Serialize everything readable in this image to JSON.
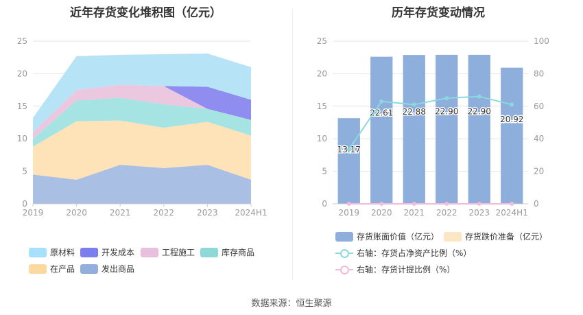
{
  "source_text": "数据来源：恒生聚源",
  "chart_data": [
    {
      "type": "area",
      "title": "近年存货变化堆积图（亿元）",
      "categories": [
        "2019",
        "2020",
        "2021",
        "2022",
        "2023",
        "2024H1"
      ],
      "ylim": [
        0,
        25
      ],
      "yticks": [
        0,
        5,
        10,
        15,
        20,
        25
      ],
      "grid": true,
      "legend_position": "bottom",
      "stack_order": [
        "发出商品",
        "在产品",
        "库存商品",
        "工程施工",
        "开发成本",
        "原材料"
      ],
      "series": [
        {
          "name": "原材料",
          "color": "#b7e3f7",
          "values": [
            2.2,
            5.2,
            4.6,
            4.9,
            5.1,
            5.0
          ]
        },
        {
          "name": "开发成本",
          "color": "#8f8df0",
          "values": [
            0,
            0,
            0,
            0,
            3.4,
            3.1
          ]
        },
        {
          "name": "工程施工",
          "color": "#ecc7e0",
          "values": [
            1.0,
            1.6,
            2.0,
            2.8,
            0,
            0
          ]
        },
        {
          "name": "库存商品",
          "color": "#a6e3e3",
          "values": [
            1.2,
            3.2,
            3.5,
            3.6,
            2.0,
            2.4
          ]
        },
        {
          "name": "在产品",
          "color": "#fde3b7",
          "values": [
            4.3,
            9.0,
            6.8,
            6.2,
            6.6,
            6.8
          ]
        },
        {
          "name": "发出商品",
          "color": "#a9bfe3",
          "values": [
            4.5,
            3.7,
            6.0,
            5.5,
            6.0,
            3.7
          ]
        }
      ],
      "legend": [
        {
          "name": "原材料",
          "color": "#a6e1fb"
        },
        {
          "name": "开发成本",
          "color": "#7b7ff0"
        },
        {
          "name": "工程施工",
          "color": "#e8bfdc"
        },
        {
          "name": "库存商品",
          "color": "#8ed8d8"
        },
        {
          "name": "在产品",
          "color": "#fcd9a1"
        },
        {
          "name": "发出商品",
          "color": "#92aedd"
        }
      ]
    },
    {
      "type": "bar",
      "title": "历年存货变动情况",
      "categories": [
        "2019",
        "2020",
        "2021",
        "2022",
        "2023",
        "2024H1"
      ],
      "ylim": [
        0,
        25
      ],
      "yticks": [
        0,
        5,
        10,
        15,
        20,
        25
      ],
      "y2lim": [
        0,
        100
      ],
      "y2ticks": [
        0,
        20,
        40,
        60,
        80,
        100
      ],
      "grid": true,
      "legend_position": "bottom",
      "bar_series": {
        "name": "存货账面价值（亿元）",
        "color": "#8eaedc",
        "values": [
          13.17,
          22.61,
          22.88,
          22.9,
          22.9,
          20.92
        ],
        "labels": [
          "13.17",
          "22.61",
          "22.88",
          "22.90",
          "22.90",
          "20.92"
        ]
      },
      "bar_series_2": {
        "name": "存货跌价准备（亿元）",
        "color": "#fde6c4",
        "values": [
          0,
          0,
          0,
          0,
          0,
          0
        ]
      },
      "line_series": [
        {
          "name": "右轴：存货占净资产比例（%）",
          "color": "#8ad9e0",
          "values": [
            33.5,
            63,
            61,
            65,
            66,
            61
          ]
        },
        {
          "name": "右轴：存货计提比例（%）",
          "color": "#f0bcd8",
          "values": [
            0,
            0,
            0,
            0,
            0,
            0
          ]
        }
      ]
    }
  ]
}
